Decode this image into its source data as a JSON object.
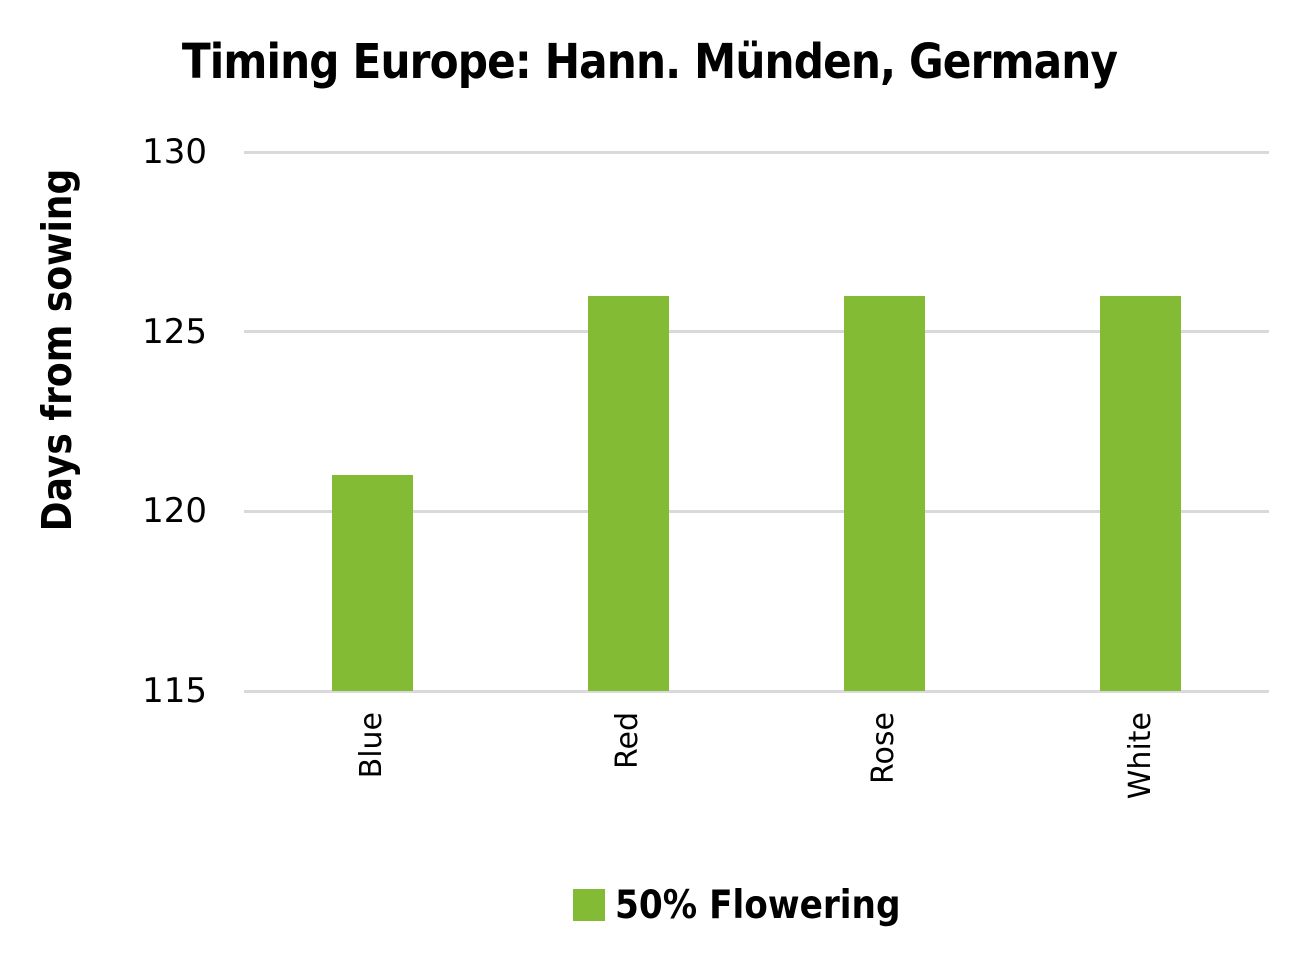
{
  "chart_data": {
    "type": "bar",
    "title": "Timing Europe: Hann. Münden, Germany",
    "ylabel": "Days from sowing",
    "xlabel": "",
    "categories": [
      "Blue",
      "Red",
      "Rose",
      "White"
    ],
    "values": [
      121,
      126,
      126,
      126
    ],
    "series": [
      {
        "name": "50% Flowering",
        "values": [
          121,
          126,
          126,
          126
        ]
      }
    ],
    "ylim": [
      115,
      130
    ],
    "yticks": [
      115,
      120,
      125,
      130
    ],
    "grid": "horizontal",
    "legend": {
      "position": "bottom",
      "entries": [
        {
          "label": "50% Flowering",
          "color": "#84bb34"
        }
      ]
    },
    "colors": {
      "bar": "#84bb34",
      "gridline": "#d9d9d9",
      "text": "#000000",
      "background": "#ffffff"
    }
  }
}
